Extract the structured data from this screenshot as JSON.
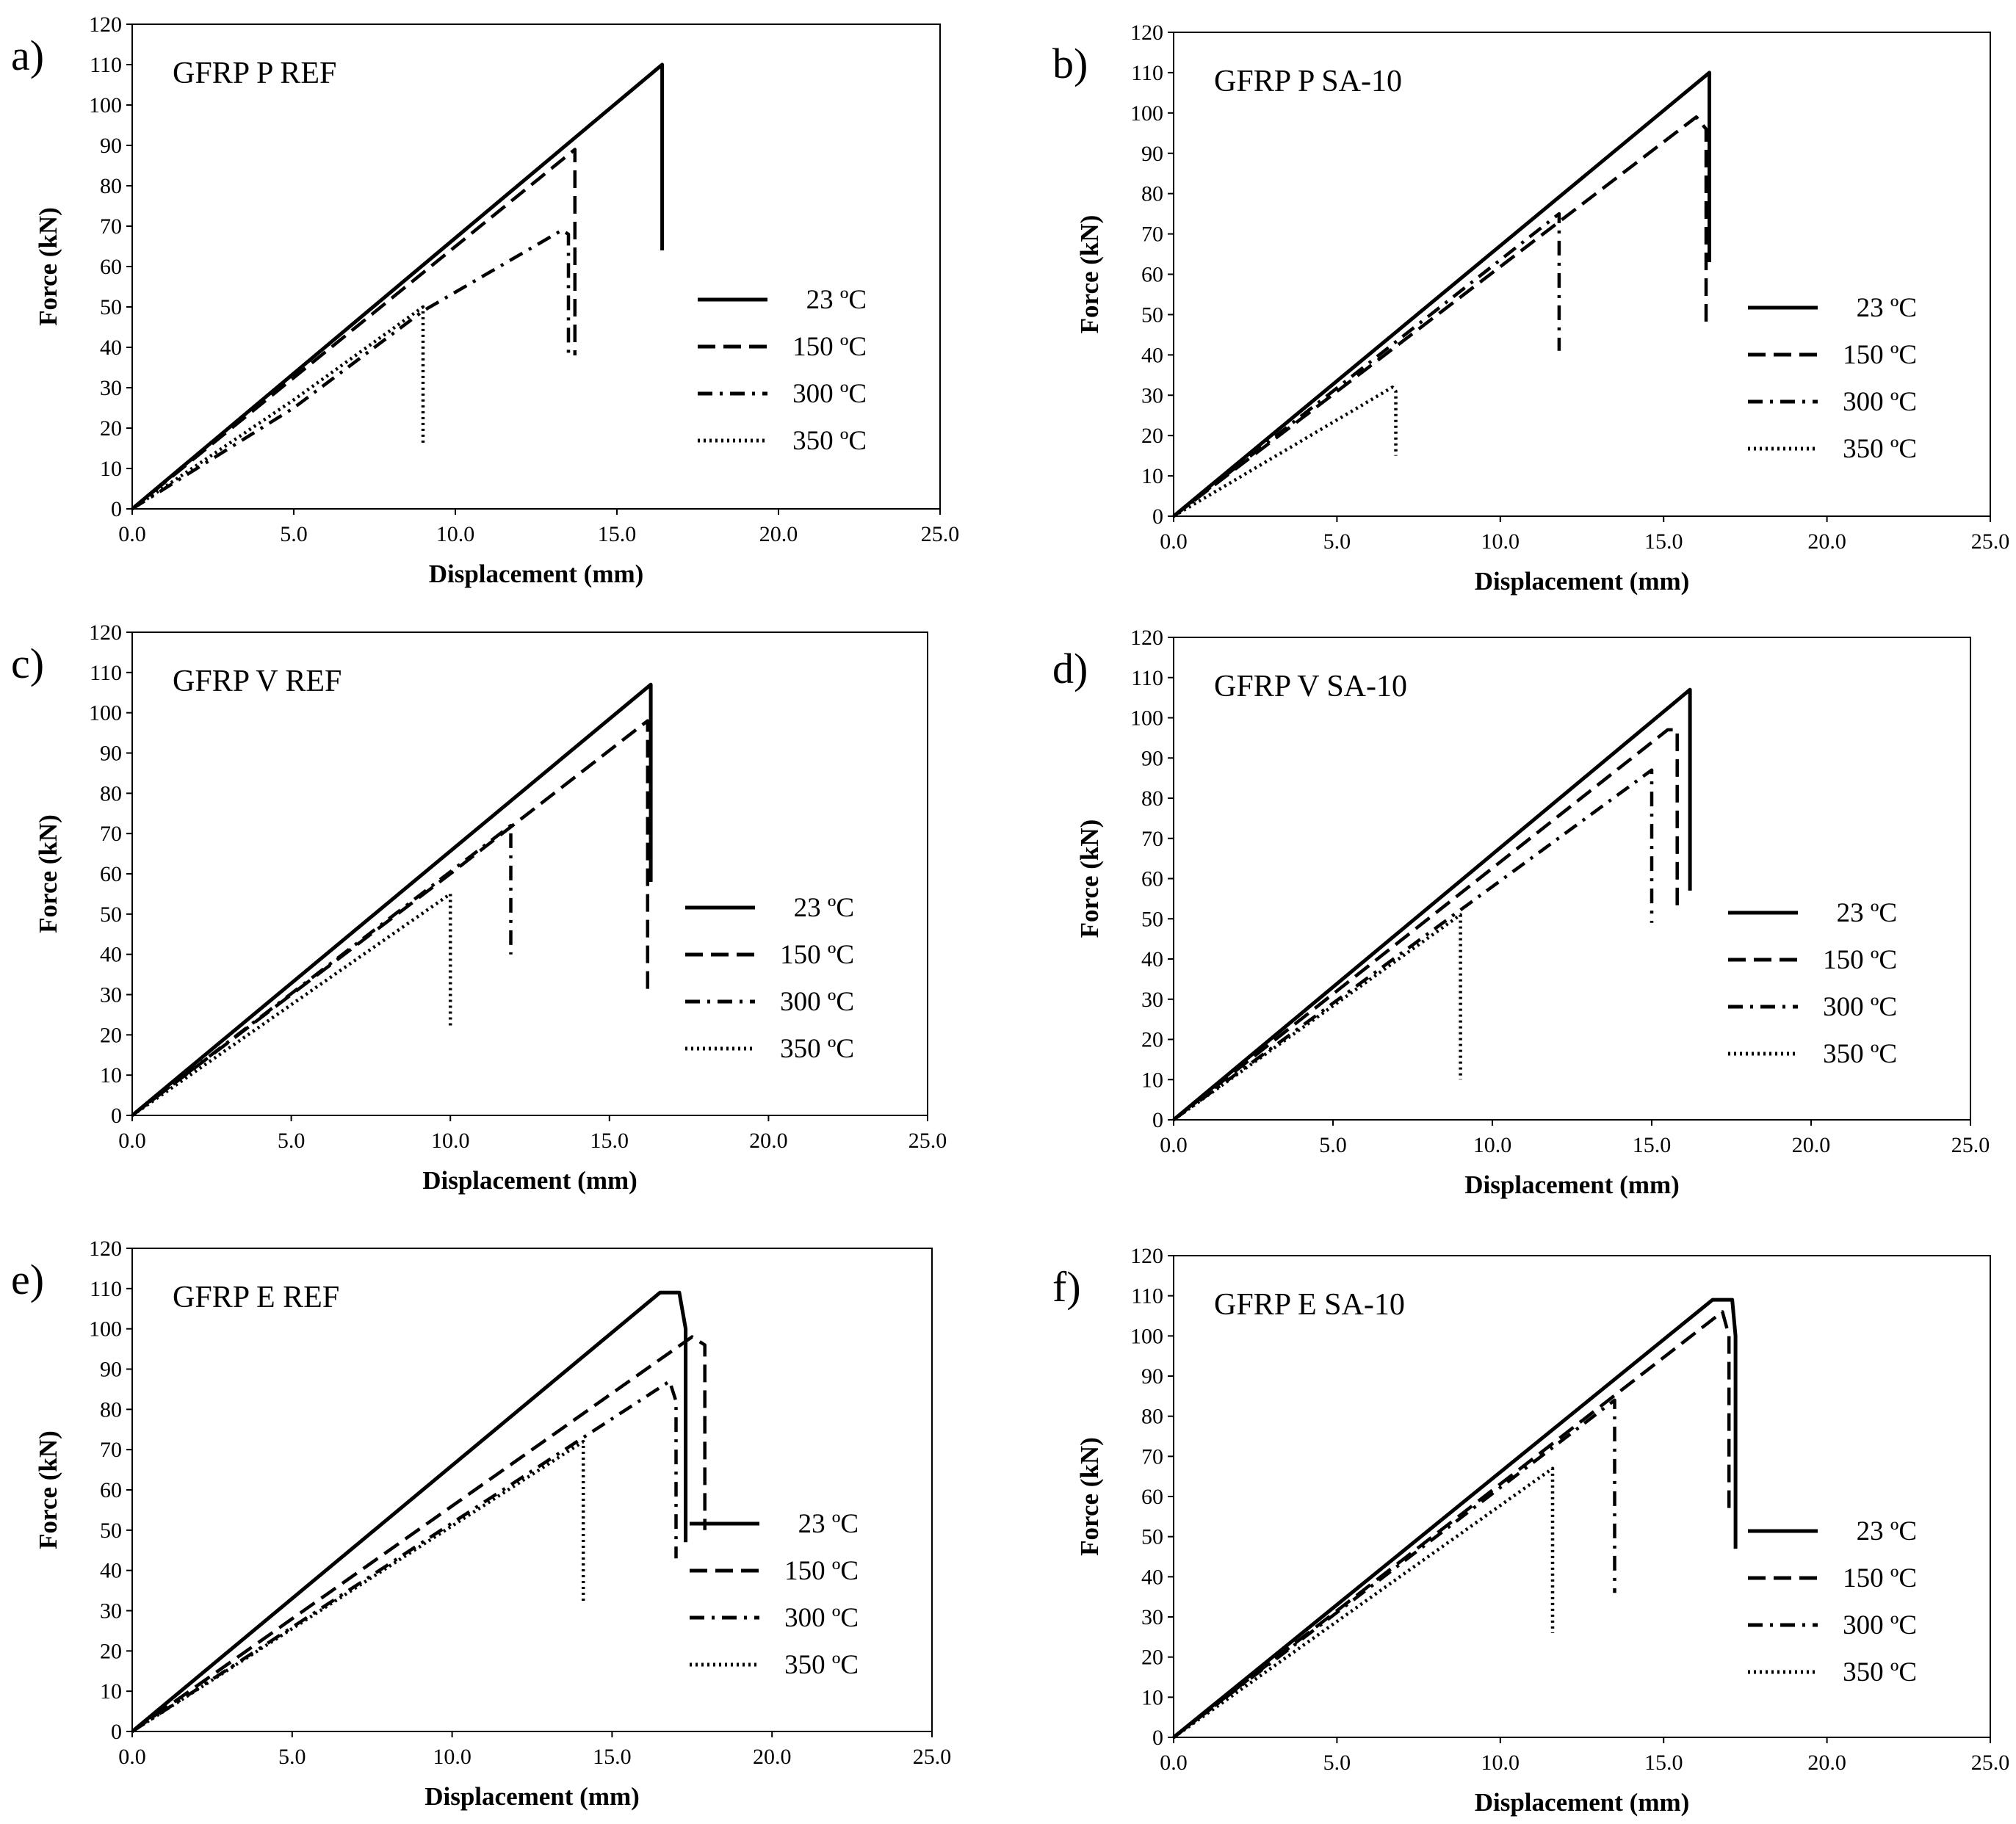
{
  "figure": {
    "panel_count": 6
  },
  "chart_data": [
    {
      "type": "line",
      "panel_letter": "a)",
      "title": "GFRP P REF",
      "xlabel": "Displacement (mm)",
      "ylabel": "Force (kN)",
      "xlim": [
        0,
        25
      ],
      "ylim": [
        0,
        120
      ],
      "xticks": [
        "0.0",
        "5.0",
        "10.0",
        "15.0",
        "20.0",
        "25.0"
      ],
      "yticks": [
        "0",
        "10",
        "20",
        "30",
        "40",
        "50",
        "60",
        "70",
        "80",
        "90",
        "100",
        "110",
        "120"
      ],
      "grid": false,
      "legend_position": "center-right",
      "series": [
        {
          "name": "23 ºC",
          "style": "solid",
          "points": [
            [
              0,
              0
            ],
            [
              16.4,
              110
            ],
            [
              16.4,
              64
            ]
          ]
        },
        {
          "name": "150 ºC",
          "style": "dashed",
          "points": [
            [
              0,
              0
            ],
            [
              13.7,
              89
            ],
            [
              13.7,
              38
            ]
          ]
        },
        {
          "name": "300 ºC",
          "style": "dashdot",
          "points": [
            [
              0,
              0
            ],
            [
              5,
              25
            ],
            [
              9,
              49
            ],
            [
              13.3,
              69
            ],
            [
              13.5,
              68
            ],
            [
              13.5,
              37
            ]
          ]
        },
        {
          "name": "350 ºC",
          "style": "dotted",
          "points": [
            [
              0,
              0
            ],
            [
              5,
              27
            ],
            [
              9,
              50
            ],
            [
              9,
              16
            ]
          ]
        }
      ]
    },
    {
      "type": "line",
      "panel_letter": "b)",
      "title": "GFRP P SA-10",
      "xlabel": "Displacement (mm)",
      "ylabel": "Force (kN)",
      "xlim": [
        0,
        25
      ],
      "ylim": [
        0,
        120
      ],
      "xticks": [
        "0.0",
        "5.0",
        "10.0",
        "15.0",
        "20.0",
        "25.0"
      ],
      "yticks": [
        "0",
        "10",
        "20",
        "30",
        "40",
        "50",
        "60",
        "70",
        "80",
        "90",
        "100",
        "110",
        "120"
      ],
      "grid": false,
      "legend_position": "center-right",
      "series": [
        {
          "name": "23 ºC",
          "style": "solid",
          "points": [
            [
              0,
              0
            ],
            [
              16.4,
              110
            ],
            [
              16.4,
              63
            ]
          ]
        },
        {
          "name": "150 ºC",
          "style": "dashed",
          "points": [
            [
              0,
              0
            ],
            [
              16,
              99
            ],
            [
              16.3,
              96
            ],
            [
              16.3,
              48
            ]
          ]
        },
        {
          "name": "300 ºC",
          "style": "dashdot",
          "points": [
            [
              0,
              0
            ],
            [
              11.8,
              75
            ],
            [
              11.8,
              41
            ]
          ]
        },
        {
          "name": "350 ºC",
          "style": "dotted",
          "points": [
            [
              0,
              0
            ],
            [
              6.7,
              32
            ],
            [
              6.8,
              31
            ],
            [
              6.8,
              15
            ]
          ]
        }
      ]
    },
    {
      "type": "line",
      "panel_letter": "c)",
      "title": "GFRP V REF",
      "xlabel": "Displacement (mm)",
      "ylabel": "Force (kN)",
      "xlim": [
        0,
        25
      ],
      "ylim": [
        0,
        120
      ],
      "xticks": [
        "0.0",
        "5.0",
        "10.0",
        "15.0",
        "20.0",
        "25.0"
      ],
      "yticks": [
        "0",
        "10",
        "20",
        "30",
        "40",
        "50",
        "60",
        "70",
        "80",
        "90",
        "100",
        "110",
        "120"
      ],
      "grid": false,
      "legend_position": "center-right",
      "series": [
        {
          "name": "23 ºC",
          "style": "solid",
          "points": [
            [
              0,
              0
            ],
            [
              16.3,
              107
            ],
            [
              16.3,
              58
            ]
          ]
        },
        {
          "name": "150 ºC",
          "style": "dashed",
          "points": [
            [
              0,
              0
            ],
            [
              10,
              60
            ],
            [
              16.2,
              98
            ],
            [
              16.2,
              30
            ]
          ]
        },
        {
          "name": "300 ºC",
          "style": "dashdot",
          "points": [
            [
              0,
              0
            ],
            [
              11.9,
              72
            ],
            [
              11.9,
              40
            ]
          ]
        },
        {
          "name": "350 ºC",
          "style": "dotted",
          "points": [
            [
              0,
              0
            ],
            [
              10,
              55
            ],
            [
              10,
              22
            ]
          ]
        }
      ]
    },
    {
      "type": "line",
      "panel_letter": "d)",
      "title": "GFRP V SA-10",
      "xlabel": "Displacement (mm)",
      "ylabel": "Force (kN)",
      "xlim": [
        0,
        25
      ],
      "ylim": [
        0,
        120
      ],
      "xticks": [
        "0.0",
        "5.0",
        "10.0",
        "15.0",
        "20.0",
        "25.0"
      ],
      "yticks": [
        "0",
        "10",
        "20",
        "30",
        "40",
        "50",
        "60",
        "70",
        "80",
        "90",
        "100",
        "110",
        "120"
      ],
      "grid": false,
      "legend_position": "center-right",
      "series": [
        {
          "name": "23 ºC",
          "style": "solid",
          "points": [
            [
              0,
              0
            ],
            [
              16.2,
              107
            ],
            [
              16.2,
              57
            ]
          ]
        },
        {
          "name": "150 ºC",
          "style": "dashed",
          "points": [
            [
              0,
              0
            ],
            [
              15.5,
              97
            ],
            [
              15.8,
              97
            ],
            [
              15.8,
              52
            ]
          ]
        },
        {
          "name": "300 ºC",
          "style": "dashdot",
          "points": [
            [
              0,
              0
            ],
            [
              15,
              87
            ],
            [
              15,
              49
            ]
          ]
        },
        {
          "name": "350 ºC",
          "style": "dotted",
          "points": [
            [
              0,
              0
            ],
            [
              9,
              51
            ],
            [
              9,
              10
            ]
          ]
        }
      ]
    },
    {
      "type": "line",
      "panel_letter": "e)",
      "title": "GFRP E REF",
      "xlabel": "Displacement (mm)",
      "ylabel": "Force (kN)",
      "xlim": [
        0,
        25
      ],
      "ylim": [
        0,
        120
      ],
      "xticks": [
        "0.0",
        "5.0",
        "10.0",
        "15.0",
        "20.0",
        "25.0"
      ],
      "yticks": [
        "0",
        "10",
        "20",
        "30",
        "40",
        "50",
        "60",
        "70",
        "80",
        "90",
        "100",
        "110",
        "120"
      ],
      "grid": false,
      "legend_position": "center-right",
      "series": [
        {
          "name": "23 ºC",
          "style": "solid",
          "points": [
            [
              0,
              0
            ],
            [
              16.5,
              109
            ],
            [
              17.1,
              109
            ],
            [
              17.3,
              100
            ],
            [
              17.3,
              47
            ]
          ]
        },
        {
          "name": "150 ºC",
          "style": "dashed",
          "points": [
            [
              0,
              0
            ],
            [
              17.5,
              98
            ],
            [
              17.9,
              96
            ],
            [
              17.9,
              50
            ]
          ]
        },
        {
          "name": "300 ºC",
          "style": "dashdot",
          "points": [
            [
              0,
              0
            ],
            [
              16.8,
              87
            ],
            [
              17,
              82
            ],
            [
              17,
              43
            ]
          ]
        },
        {
          "name": "350 ºC",
          "style": "dotted",
          "points": [
            [
              0,
              0
            ],
            [
              14.1,
              72
            ],
            [
              14.1,
              32
            ]
          ]
        }
      ]
    },
    {
      "type": "line",
      "panel_letter": "f)",
      "title": "GFRP E SA-10",
      "xlabel": "Displacement (mm)",
      "ylabel": "Force (kN)",
      "xlim": [
        0,
        25
      ],
      "ylim": [
        0,
        120
      ],
      "xticks": [
        "0.0",
        "5.0",
        "10.0",
        "15.0",
        "20.0",
        "25.0"
      ],
      "yticks": [
        "0",
        "10",
        "20",
        "30",
        "40",
        "50",
        "60",
        "70",
        "80",
        "90",
        "100",
        "110",
        "120"
      ],
      "grid": false,
      "legend_position": "center-right",
      "series": [
        {
          "name": "23 ºC",
          "style": "solid",
          "points": [
            [
              0,
              0
            ],
            [
              16.5,
              109
            ],
            [
              17.1,
              109
            ],
            [
              17.2,
              100
            ],
            [
              17.2,
              47
            ]
          ]
        },
        {
          "name": "150 ºC",
          "style": "dashed",
          "points": [
            [
              0,
              0
            ],
            [
              16.8,
              106
            ],
            [
              17,
              100
            ],
            [
              17,
              57
            ]
          ]
        },
        {
          "name": "300 ºC",
          "style": "dashdot",
          "points": [
            [
              0,
              0
            ],
            [
              13.5,
              84
            ],
            [
              13.5,
              36
            ]
          ]
        },
        {
          "name": "350 ºC",
          "style": "dotted",
          "points": [
            [
              0,
              0
            ],
            [
              11.6,
              67
            ],
            [
              11.6,
              26
            ]
          ]
        }
      ]
    }
  ]
}
